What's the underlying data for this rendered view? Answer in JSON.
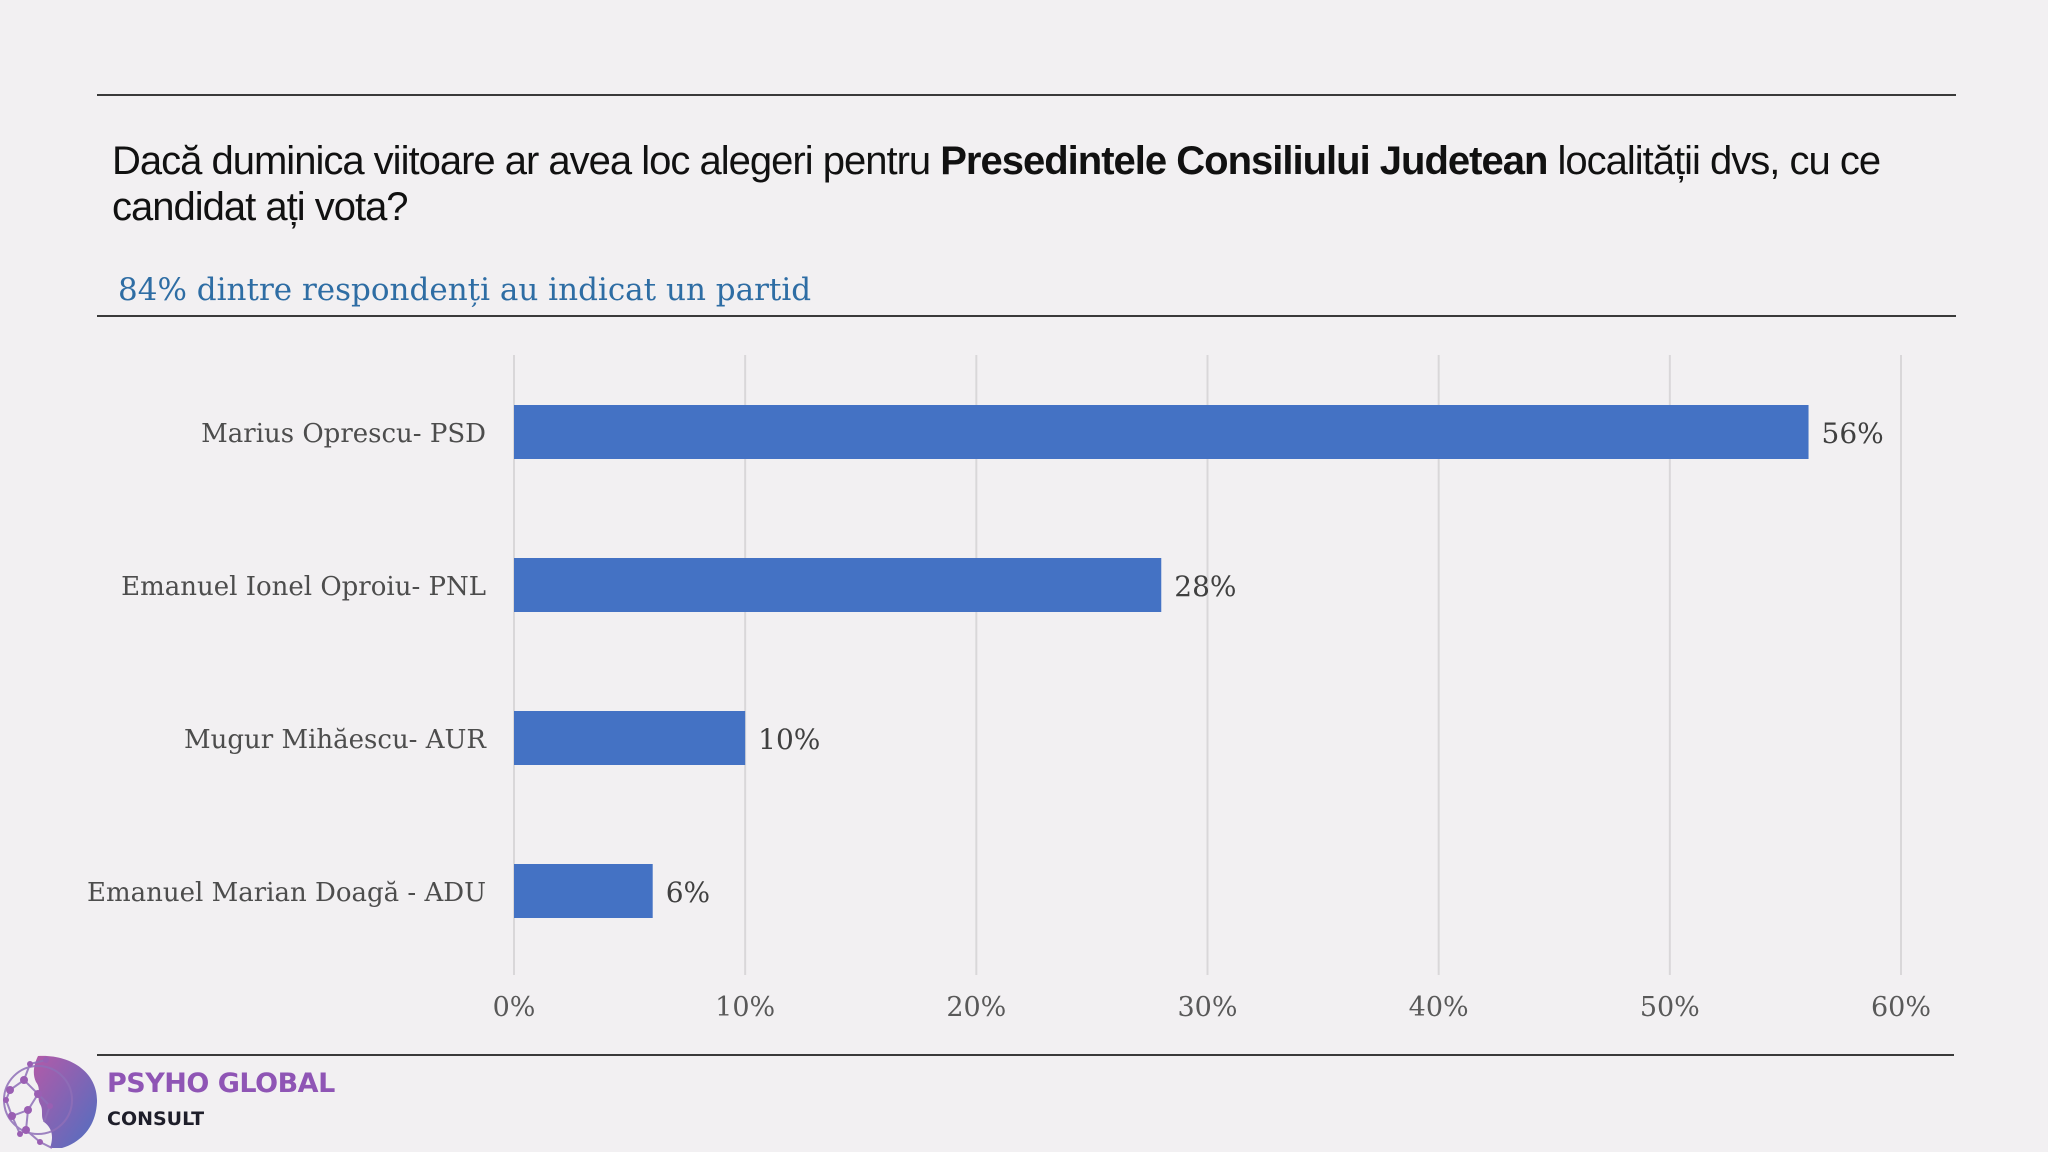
{
  "question": {
    "part1": "Dacă duminica viitoare ar avea loc alegeri pentru ",
    "bold": "Presedintele Consiliului Judetean",
    "part2": " localității dvs, cu ce candidat ați vota?"
  },
  "subtitle": "84% dintre respondenți au indicat un partid",
  "chart_data": {
    "type": "bar",
    "orientation": "horizontal",
    "categories": [
      "Marius Oprescu- PSD",
      "Emanuel Ionel Oproiu- PNL",
      "Mugur Mihăescu- AUR",
      "Emanuel Marian Doagă - ADU"
    ],
    "values": [
      56,
      28,
      10,
      6
    ],
    "value_labels": [
      "56%",
      "28%",
      "10%",
      "6%"
    ],
    "xlim": [
      0,
      60
    ],
    "xticks": [
      0,
      10,
      20,
      30,
      40,
      50,
      60
    ],
    "xtick_labels": [
      "0%",
      "10%",
      "20%",
      "30%",
      "40%",
      "50%",
      "60%"
    ],
    "bar_color": "#4472c4",
    "grid": true,
    "legend": "none"
  },
  "brand": {
    "name": "PSYHO GLOBAL",
    "sub": "CONSULT",
    "logo_icon": "head-network-icon",
    "colors": {
      "purple": "#8f55b5",
      "blue": "#4f6fc1"
    }
  },
  "colors": {
    "background": "#f2f0f2",
    "accent": "#2e6da4"
  }
}
